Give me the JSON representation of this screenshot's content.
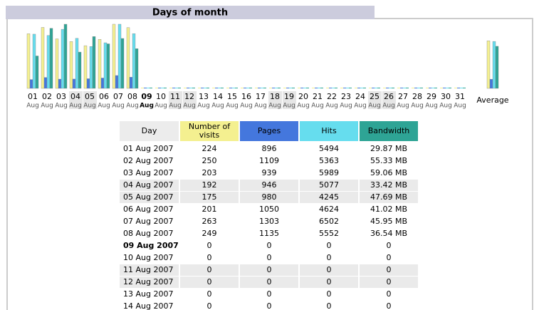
{
  "chart_data": {
    "type": "bar",
    "title": "Days of month",
    "categories": [
      "01",
      "02",
      "03",
      "04",
      "05",
      "06",
      "07",
      "08",
      "09",
      "10",
      "11",
      "12",
      "13",
      "14",
      "15",
      "16",
      "17",
      "18",
      "19",
      "20",
      "21",
      "22",
      "23",
      "24",
      "25",
      "26",
      "27",
      "28",
      "29",
      "30",
      "31",
      "Average"
    ],
    "sublabels": [
      "Aug",
      "Aug",
      "Aug",
      "Aug",
      "Aug",
      "Aug",
      "Aug",
      "Aug",
      "Aug",
      "Aug",
      "Aug",
      "Aug",
      "Aug",
      "Aug",
      "Aug",
      "Aug",
      "Aug",
      "Aug",
      "Aug",
      "Aug",
      "Aug",
      "Aug",
      "Aug",
      "Aug",
      "Aug",
      "Aug",
      "Aug",
      "Aug",
      "Aug",
      "Aug",
      "Aug",
      null
    ],
    "series": [
      {
        "name": "Number of visits",
        "color": "#f4f090",
        "ylim": [
          0,
          263
        ],
        "values": [
          224,
          250,
          203,
          192,
          175,
          201,
          263,
          249,
          0,
          0,
          0,
          0,
          0,
          0,
          0,
          0,
          0,
          0,
          0,
          0,
          0,
          0,
          0,
          0,
          0,
          0,
          0,
          0,
          0,
          0,
          0,
          195.22
        ]
      },
      {
        "name": "Pages",
        "color": "#4477dd",
        "ylim": [
          0,
          6502
        ],
        "values": [
          896,
          1109,
          939,
          946,
          980,
          1050,
          1303,
          1135,
          0,
          0,
          0,
          0,
          0,
          0,
          0,
          0,
          0,
          0,
          0,
          0,
          0,
          0,
          0,
          0,
          0,
          0,
          0,
          0,
          0,
          0,
          0,
          928.67
        ]
      },
      {
        "name": "Hits",
        "color": "#66ddee",
        "ylim": [
          0,
          6502
        ],
        "values": [
          5494,
          5363,
          5989,
          5077,
          4245,
          4624,
          6502,
          5552,
          0,
          0,
          0,
          0,
          0,
          0,
          0,
          0,
          0,
          0,
          0,
          0,
          0,
          0,
          0,
          0,
          0,
          0,
          0,
          0,
          0,
          0,
          0,
          4760.67
        ]
      },
      {
        "name": "Bandwidth",
        "color": "#2ea495",
        "ylim": [
          0,
          59.06
        ],
        "values": [
          29.87,
          55.33,
          59.06,
          33.42,
          47.69,
          41.02,
          45.95,
          36.54,
          0,
          0,
          0,
          0,
          0,
          0,
          0,
          0,
          0,
          0,
          0,
          0,
          0,
          0,
          0,
          0,
          0,
          0,
          0,
          0,
          0,
          0,
          0,
          38.76
        ],
        "value_labels": [
          "29.87 MB",
          "55.33 MB",
          "59.06 MB",
          "33.42 MB",
          "47.69 MB",
          "41.02 MB",
          "45.95 MB",
          "36.54 MB",
          "0",
          "0",
          "0",
          "0",
          "0",
          "0",
          "0",
          "0",
          "0",
          "0",
          "0",
          "0",
          "0",
          "0",
          "0",
          "0",
          "0",
          "0",
          "0",
          "0",
          "0",
          "0",
          "0",
          null
        ]
      }
    ]
  },
  "table": {
    "day_header": "Day",
    "days": [
      "01 Aug 2007",
      "02 Aug 2007",
      "03 Aug 2007",
      "04 Aug 2007",
      "05 Aug 2007",
      "06 Aug 2007",
      "07 Aug 2007",
      "08 Aug 2007",
      "09 Aug 2007",
      "10 Aug 2007",
      "11 Aug 2007",
      "12 Aug 2007",
      "13 Aug 2007",
      "14 Aug 2007"
    ]
  }
}
